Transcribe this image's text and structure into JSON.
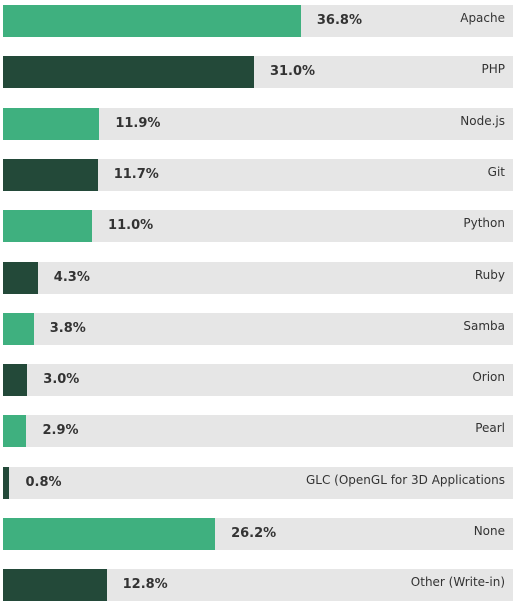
{
  "chart_data": {
    "type": "bar",
    "orientation": "horizontal",
    "categories": [
      "Apache",
      "PHP",
      "Node.js",
      "Git",
      "Python",
      "Ruby",
      "Samba",
      "Orion",
      "Pearl",
      "GLC (OpenGL for 3D Applications",
      "None",
      "Other (Write-in)"
    ],
    "values": [
      36.8,
      31.0,
      11.9,
      11.7,
      11.0,
      4.3,
      3.8,
      3.0,
      2.9,
      0.8,
      26.2,
      12.8
    ],
    "value_labels": [
      "36.8%",
      "31.0%",
      "11.9%",
      "11.7%",
      "11.0%",
      "4.3%",
      "3.8%",
      "3.0%",
      "2.9%",
      "0.8%",
      "26.2%",
      "12.8%"
    ],
    "xlim": [
      0,
      63
    ],
    "grid": false,
    "legend": "none",
    "colors": {
      "light": "#3fb07f",
      "dark": "#234939",
      "track": "#e6e6e6",
      "text": "#333333"
    },
    "color_pattern": [
      "light",
      "dark"
    ]
  }
}
